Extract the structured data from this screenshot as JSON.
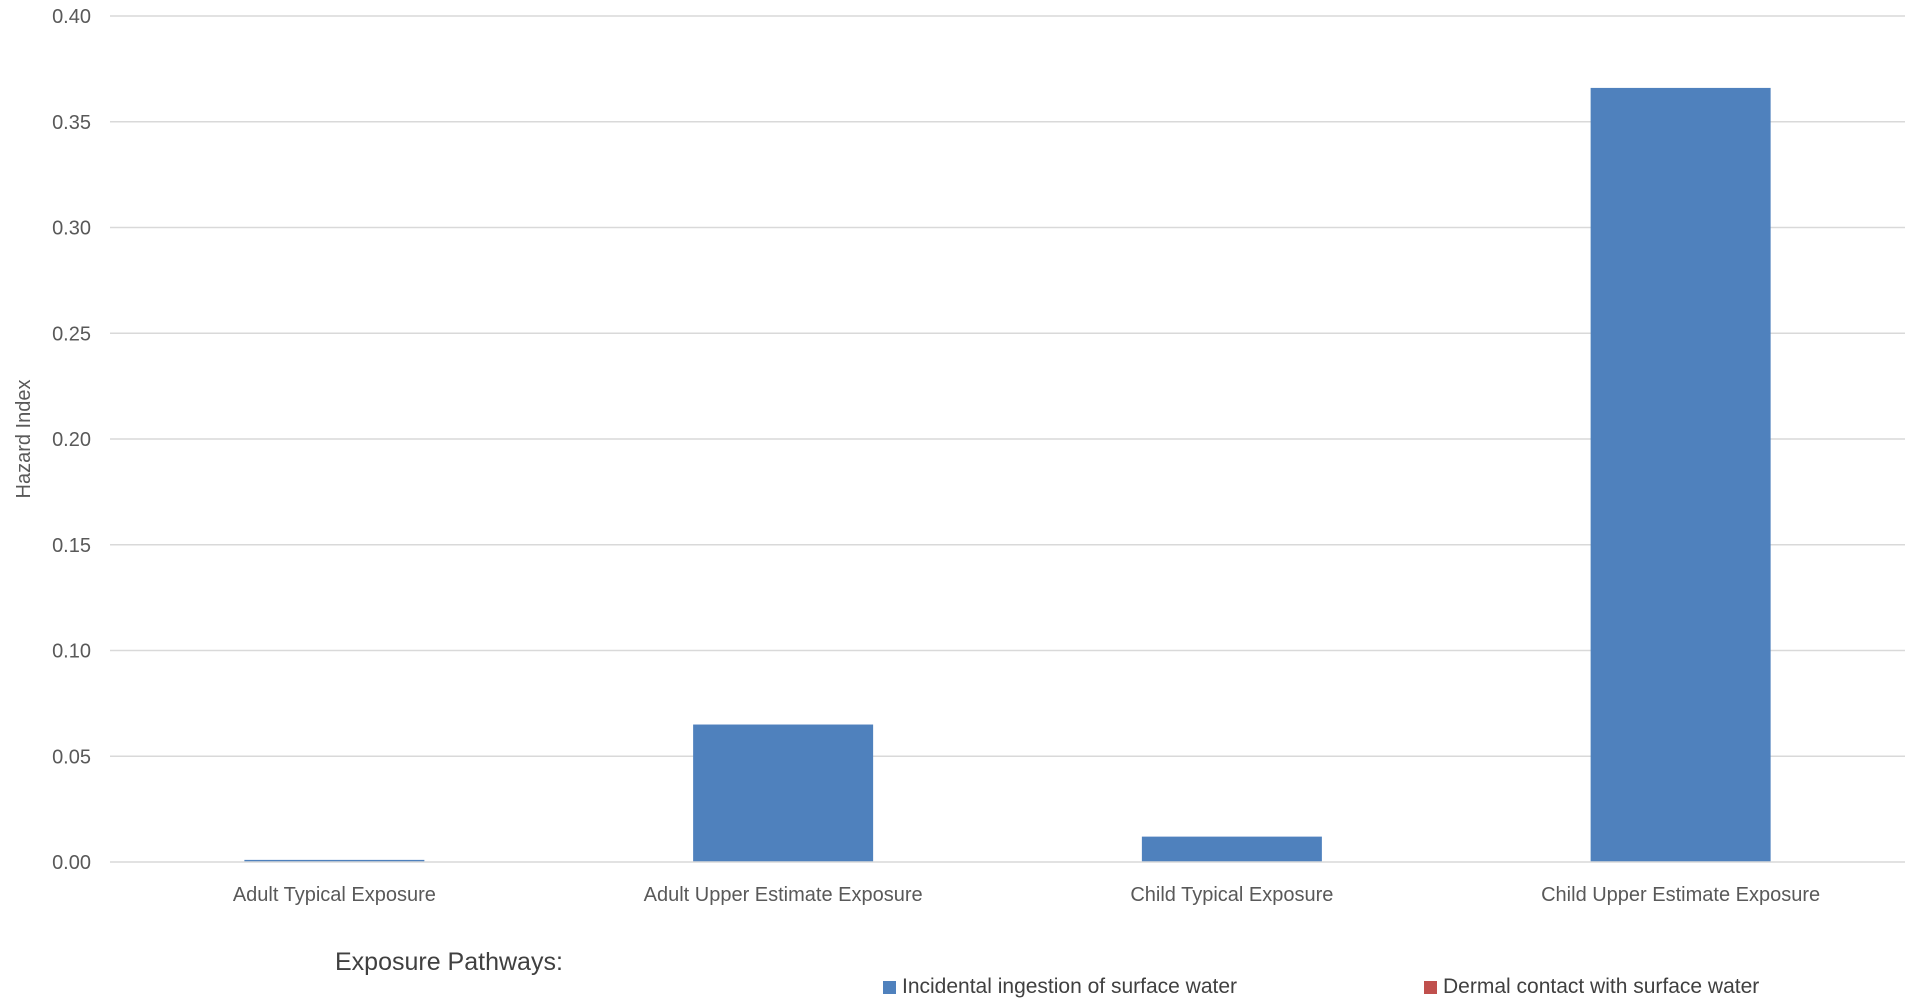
{
  "chart_data": {
    "type": "bar",
    "title": "",
    "xlabel": "",
    "ylabel": "Hazard Index",
    "ylim": [
      0,
      0.4
    ],
    "yticks": [
      "0.00",
      "0.05",
      "0.10",
      "0.15",
      "0.20",
      "0.25",
      "0.30",
      "0.35",
      "0.40"
    ],
    "categories": [
      "Adult Typical Exposure",
      "Adult Upper Estimate Exposure",
      "Child Typical Exposure",
      "Child Upper Estimate Exposure"
    ],
    "series": [
      {
        "name": "Incidental ingestion of surface water",
        "color": "#4f81bd",
        "values": [
          0.001,
          0.065,
          0.012,
          0.366
        ]
      },
      {
        "name": "Dermal contact with surface water",
        "color": "#c0504d",
        "values": [
          0,
          0,
          0,
          0
        ]
      }
    ],
    "grid": true,
    "legend_title": "Exposure Pathways:",
    "legend_position": "bottom"
  }
}
